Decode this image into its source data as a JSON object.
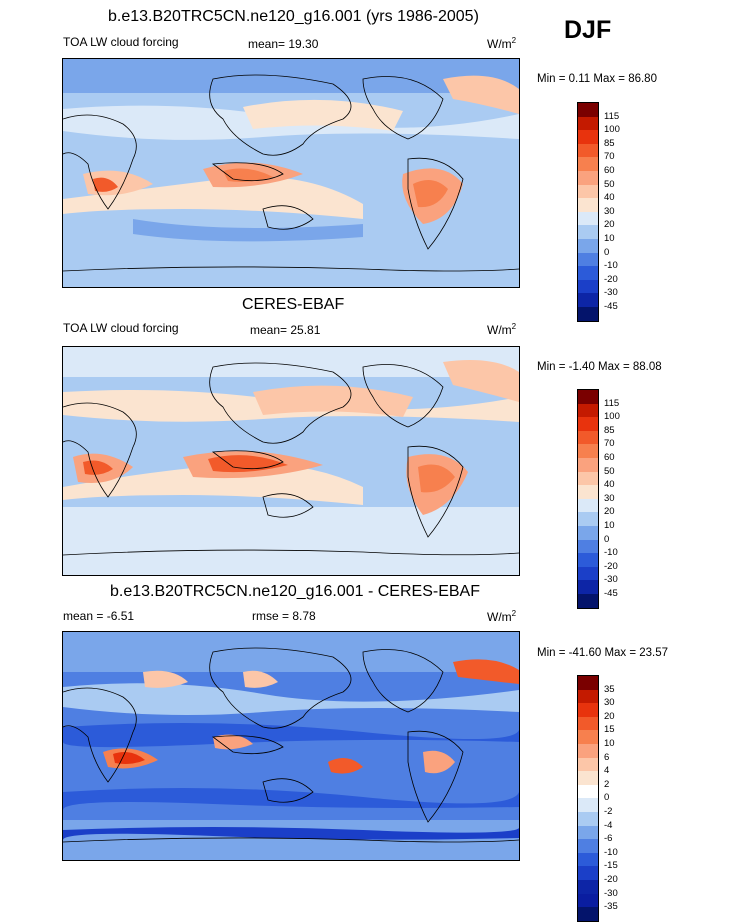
{
  "season": "DJF",
  "panels": [
    {
      "title": "b.e13.B20TRC5CN.ne120_g16.001 (yrs 1986-2005)",
      "left_label": "TOA LW cloud forcing",
      "center_label": "mean=  19.30",
      "units": "W/m",
      "units_sup": "2",
      "minmax": "Min =   0.11 Max =   86.80",
      "colorbar": {
        "labels": [
          "115",
          "100",
          "85",
          "70",
          "60",
          "50",
          "40",
          "30",
          "20",
          "10",
          "0",
          "-10",
          "-20",
          "-30",
          "-45"
        ],
        "colors": [
          "#7a0000",
          "#c41a00",
          "#e8330d",
          "#f25a2a",
          "#f7804e",
          "#faa27e",
          "#fcc6a8",
          "#fbe4d0",
          "#dbe9f8",
          "#aacbf2",
          "#7aa6ea",
          "#4f7fe2",
          "#2c5bd9",
          "#1b3fc8",
          "#0d25a6",
          "#04146b"
        ]
      }
    },
    {
      "title": "CERES-EBAF",
      "left_label": "TOA LW cloud forcing",
      "center_label": "mean=  25.81",
      "units": "W/m",
      "units_sup": "2",
      "minmax": "Min =  -1.40 Max =  88.08",
      "colorbar": {
        "labels": [
          "115",
          "100",
          "85",
          "70",
          "60",
          "50",
          "40",
          "30",
          "20",
          "10",
          "0",
          "-10",
          "-20",
          "-30",
          "-45"
        ],
        "colors": [
          "#7a0000",
          "#c41a00",
          "#e8330d",
          "#f25a2a",
          "#f7804e",
          "#faa27e",
          "#fcc6a8",
          "#fbe4d0",
          "#dbe9f8",
          "#aacbf2",
          "#7aa6ea",
          "#4f7fe2",
          "#2c5bd9",
          "#1b3fc8",
          "#0d25a6",
          "#04146b"
        ]
      }
    },
    {
      "title": "b.e13.B20TRC5CN.ne120_g16.001 - CERES-EBAF",
      "left_label": "mean =  -6.51",
      "center_label": "rmse =   8.78",
      "units": "W/m",
      "units_sup": "2",
      "minmax": "Min = -41.60 Max =  23.57",
      "colorbar": {
        "labels": [
          "35",
          "30",
          "20",
          "15",
          "10",
          "6",
          "4",
          "2",
          "0",
          "-2",
          "-4",
          "-6",
          "-10",
          "-15",
          "-20",
          "-30",
          "-35"
        ],
        "colors": [
          "#7a0000",
          "#c41a00",
          "#e8330d",
          "#f25a2a",
          "#f7804e",
          "#faa27e",
          "#fcc6a8",
          "#fbe4d0",
          "#ffffff",
          "#dbe9f8",
          "#aacbf2",
          "#7aa6ea",
          "#4f7fe2",
          "#2c5bd9",
          "#1b3fc8",
          "#0d25a6",
          "#0a1da0",
          "#04146b"
        ]
      }
    }
  ],
  "chart_data": [
    {
      "type": "heatmap",
      "title": "b.e13.B20TRC5CN.ne120_g16.001 (yrs 1986-2005)",
      "variable": "TOA LW cloud forcing",
      "units": "W/m2",
      "mean": 19.3,
      "min": 0.11,
      "max": 86.8,
      "contour_levels": [
        -45,
        -30,
        -20,
        -10,
        0,
        10,
        20,
        30,
        40,
        50,
        60,
        70,
        85,
        100,
        115
      ]
    },
    {
      "type": "heatmap",
      "title": "CERES-EBAF",
      "variable": "TOA LW cloud forcing",
      "units": "W/m2",
      "mean": 25.81,
      "min": -1.4,
      "max": 88.08,
      "contour_levels": [
        -45,
        -30,
        -20,
        -10,
        0,
        10,
        20,
        30,
        40,
        50,
        60,
        70,
        85,
        100,
        115
      ]
    },
    {
      "type": "heatmap",
      "title": "b.e13.B20TRC5CN.ne120_g16.001 - CERES-EBAF",
      "variable": "difference",
      "units": "W/m2",
      "mean": -6.51,
      "rmse": 8.78,
      "min": -41.6,
      "max": 23.57,
      "contour_levels": [
        -35,
        -30,
        -20,
        -15,
        -10,
        -6,
        -4,
        -2,
        0,
        2,
        4,
        6,
        10,
        15,
        20,
        30,
        35
      ]
    }
  ]
}
